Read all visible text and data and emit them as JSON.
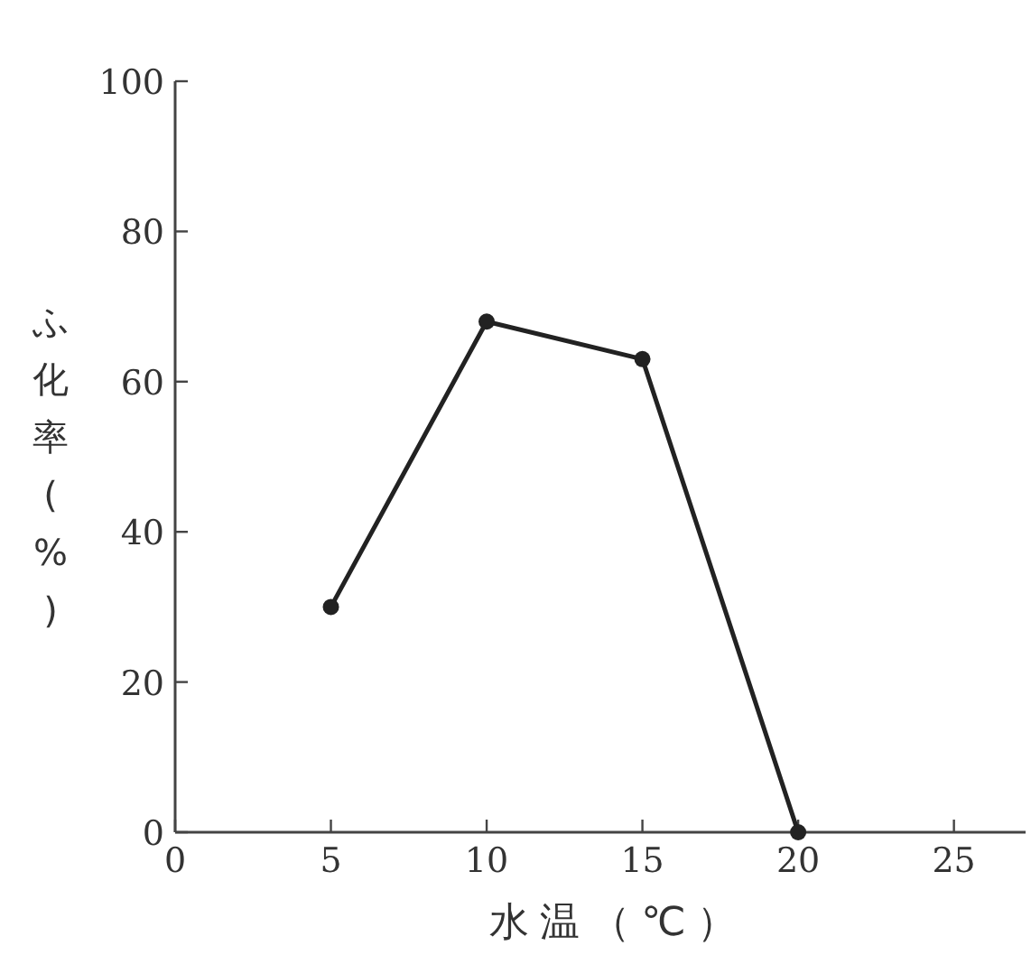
{
  "chart_data": {
    "type": "line",
    "xlabel": "水温（℃）",
    "ylabel": "ふ化率(%)",
    "x": [
      5,
      10,
      15,
      20
    ],
    "series": [
      {
        "color": "#222222",
        "values": [
          30,
          68,
          63,
          0
        ]
      }
    ],
    "xlim": [
      0,
      27.3
    ],
    "ylim": [
      0,
      100
    ],
    "xticks": [
      0,
      5,
      10,
      15,
      20,
      25
    ],
    "yticks": [
      0,
      20,
      40,
      60,
      80,
      100
    ],
    "marker": "circle",
    "line_style": "solid",
    "grid": false
  }
}
